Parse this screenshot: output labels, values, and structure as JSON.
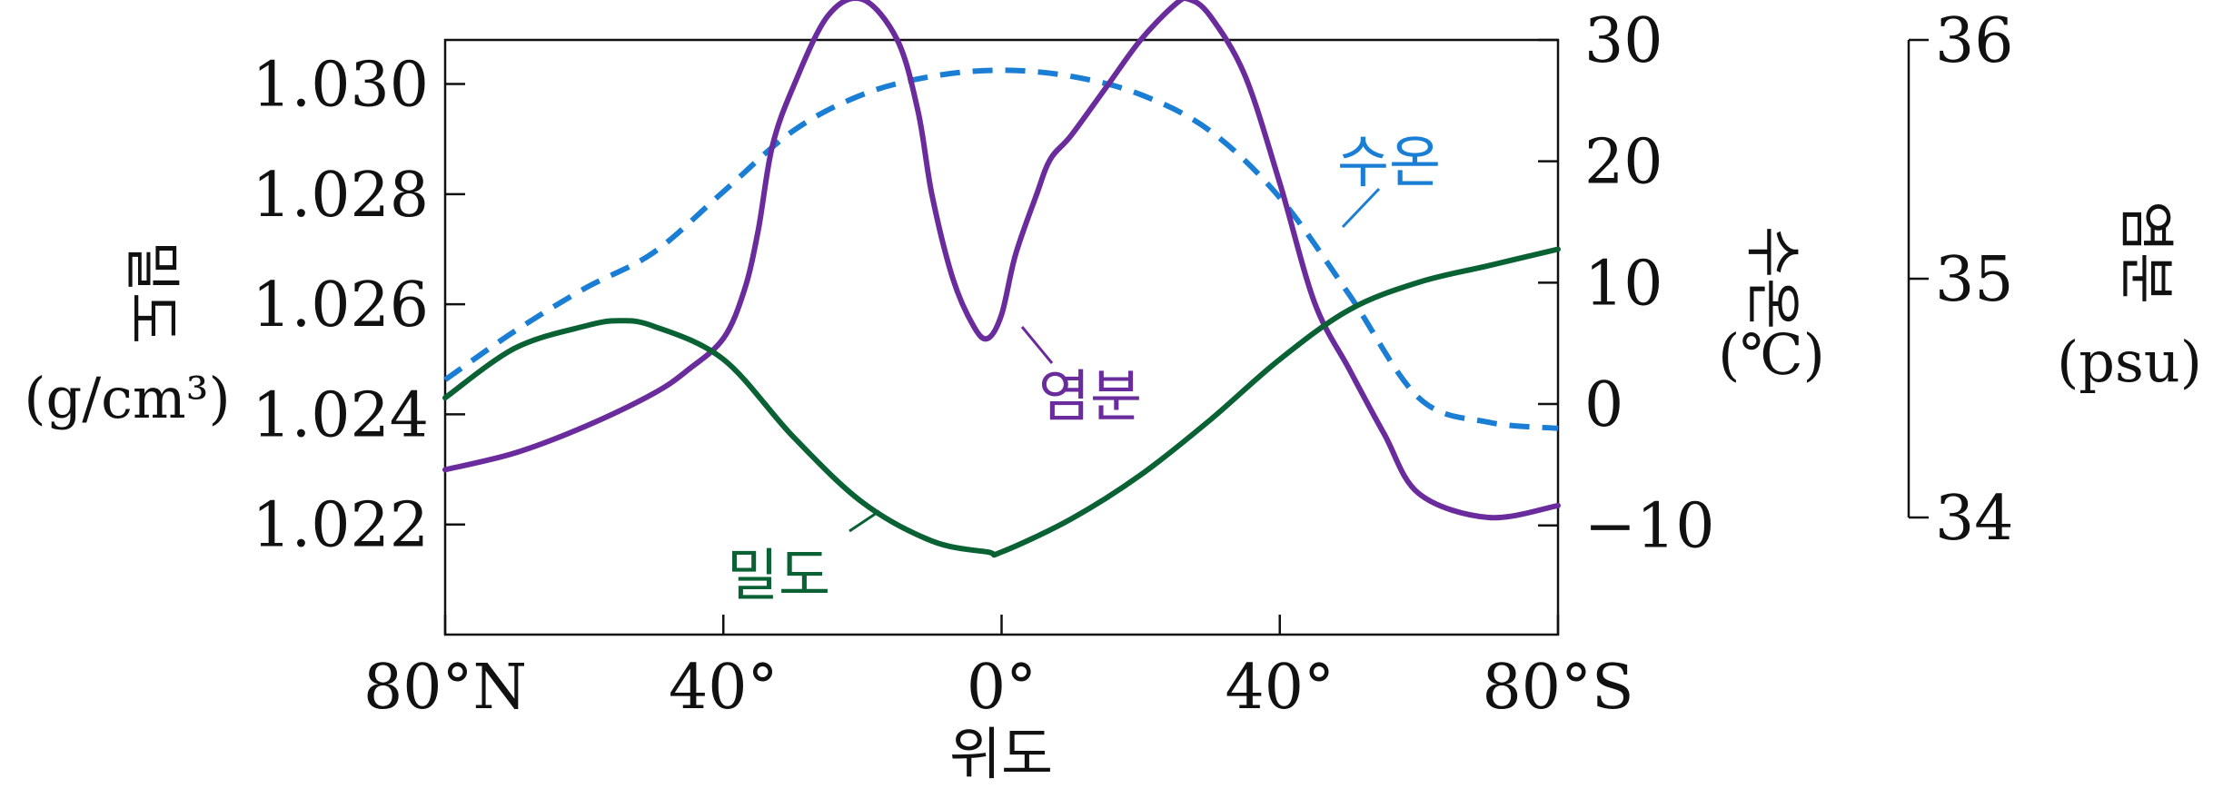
{
  "chart_data": {
    "type": "line",
    "x_axis": {
      "title": "위도",
      "tick_values": [
        -80,
        -40,
        0,
        40,
        80
      ],
      "tick_labels": [
        "80°N",
        "40°",
        "0°",
        "40°",
        "80°S"
      ],
      "range": [
        -80,
        80
      ]
    },
    "y_axes": {
      "density": {
        "title": "밀도",
        "unit": "(g/cm³)",
        "position": "left",
        "range": [
          1.02,
          1.0308
        ],
        "ticks": [
          1.022,
          1.024,
          1.026,
          1.028,
          1.03
        ],
        "tick_labels": [
          "1.022",
          "1.024",
          "1.026",
          "1.028",
          "1.030"
        ]
      },
      "temperature": {
        "title": "수온",
        "unit": "(℃)",
        "position": "right",
        "range": [
          -19,
          30
        ],
        "ticks": [
          -10,
          0,
          10,
          20,
          30
        ],
        "tick_labels": [
          "−10",
          "0",
          "10",
          "20",
          "30"
        ]
      },
      "salinity": {
        "title": "염분",
        "unit": "(psu)",
        "position": "far-right",
        "range": [
          34,
          36
        ],
        "ticks": [
          34,
          35,
          36
        ],
        "tick_labels": [
          "34",
          "35",
          "36"
        ]
      }
    },
    "series": [
      {
        "name": "수온",
        "axis": "temperature",
        "color": "#1a7fd4",
        "style": "dashed",
        "x": [
          -80,
          -70,
          -60,
          -50,
          -40,
          -30,
          -20,
          -10,
          0,
          10,
          20,
          30,
          40,
          50,
          60,
          70,
          80
        ],
        "y": [
          2,
          6,
          9.5,
          12.5,
          17.5,
          22.5,
          25.5,
          27,
          27.5,
          27,
          25.5,
          22.5,
          17,
          9,
          0.5,
          -1.5,
          -2
        ]
      },
      {
        "name": "염분",
        "axis": "salinity",
        "color": "#6a2c9c",
        "style": "solid",
        "x": [
          -80,
          -70,
          -60,
          -50,
          -45,
          -40,
          -37,
          -35,
          -33,
          -30,
          -25,
          -20,
          -15,
          -12,
          -10,
          -7,
          -4,
          -2,
          0,
          2,
          5,
          7,
          10,
          15,
          20,
          25,
          27,
          30,
          35,
          40,
          45,
          50,
          55,
          60,
          70,
          80
        ],
        "y": [
          34.2,
          34.27,
          34.38,
          34.52,
          34.62,
          34.75,
          34.95,
          35.2,
          35.55,
          35.8,
          36.1,
          36.17,
          36,
          35.7,
          35.35,
          35.0,
          34.8,
          34.75,
          34.85,
          35.1,
          35.35,
          35.5,
          35.6,
          35.8,
          36.0,
          36.15,
          36.17,
          36.1,
          35.85,
          35.4,
          34.9,
          34.62,
          34.35,
          34.1,
          34.0,
          34.05
        ]
      },
      {
        "name": "밀도",
        "axis": "density",
        "color": "#0a6234",
        "style": "solid",
        "x": [
          -80,
          -70,
          -60,
          -55,
          -50,
          -40,
          -30,
          -20,
          -10,
          -2,
          0,
          10,
          20,
          30,
          40,
          50,
          60,
          70,
          80
        ],
        "y": [
          1.0243,
          1.0252,
          1.0256,
          1.0257,
          1.0256,
          1.025,
          1.0236,
          1.0224,
          1.0217,
          1.0215,
          1.0215,
          1.0221,
          1.0229,
          1.0239,
          1.025,
          1.0259,
          1.0264,
          1.0267,
          1.027
        ]
      }
    ],
    "grid": false,
    "legend": "inline labels"
  }
}
